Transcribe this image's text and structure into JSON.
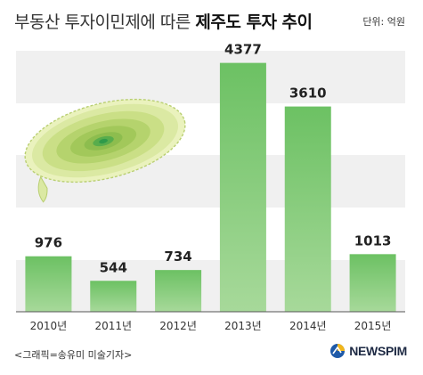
{
  "header": {
    "title_regular": "부동산 투자이민제에 따른",
    "title_bold": "제주도 투자 추이",
    "unit": "단위: 억원"
  },
  "chart_data": {
    "type": "bar",
    "categories": [
      "2010년",
      "2011년",
      "2012년",
      "2013년",
      "2014년",
      "2015년"
    ],
    "values": [
      976,
      544,
      734,
      4377,
      3610,
      1013
    ],
    "title": "부동산 투자이민제에 따른 제주도 투자 추이",
    "xlabel": "",
    "ylabel": "",
    "unit": "억원",
    "ylim": [
      0,
      4700
    ],
    "grid": "horizontal bands",
    "data_labels": true,
    "colors": {
      "bar_top": "#6cc163",
      "bar_bottom": "#a7d99a",
      "band": "#f0f0f0"
    }
  },
  "footer": {
    "credit": "<그래픽=송유미 미술기자>",
    "brand": "NEWSPIM",
    "brand_colors": {
      "text": "#1e2a44",
      "logo_blue": "#1f5aa8",
      "logo_yellow": "#f2b61a"
    }
  },
  "decor": {
    "map": "jeju-island-map",
    "logo": "newspim-logo-icon"
  }
}
